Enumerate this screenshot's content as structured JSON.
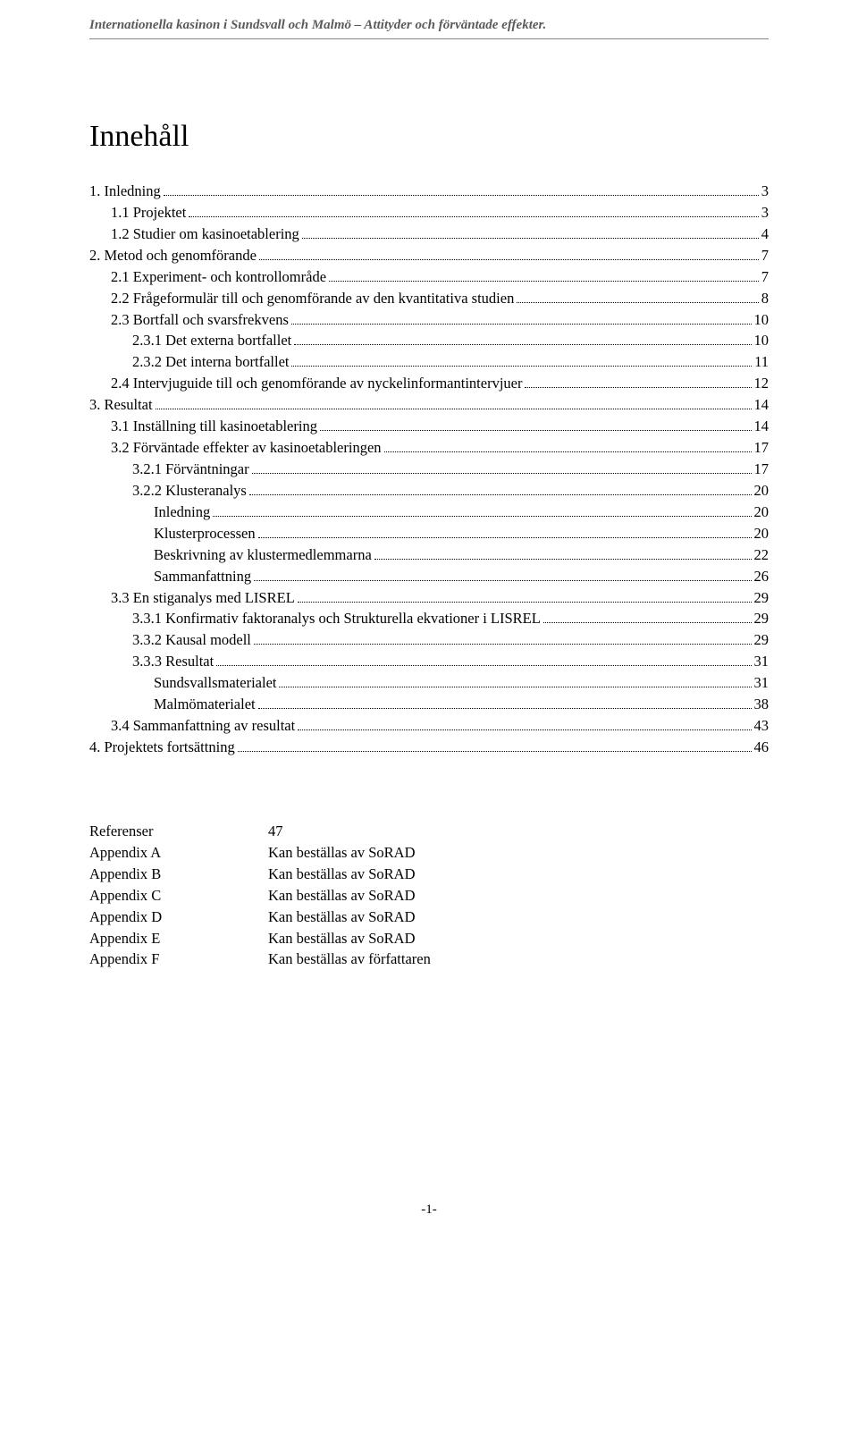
{
  "header": {
    "running_title": "Internationella kasinon i Sundsvall och Malmö – Attityder och förväntade effekter."
  },
  "title": "Innehåll",
  "toc": [
    {
      "label": "1. Inledning",
      "page": "3",
      "indent": 0
    },
    {
      "label": "1.1 Projektet",
      "page": "3",
      "indent": 1
    },
    {
      "label": "1.2 Studier om kasinoetablering",
      "page": "4",
      "indent": 1
    },
    {
      "label": "2. Metod och genomförande",
      "page": "7",
      "indent": 0
    },
    {
      "label": "2.1 Experiment- och kontrollområde",
      "page": "7",
      "indent": 1
    },
    {
      "label": "2.2 Frågeformulär till och genomförande av den kvantitativa studien",
      "page": "8",
      "indent": 1
    },
    {
      "label": "2.3 Bortfall och svarsfrekvens",
      "page": "10",
      "indent": 1
    },
    {
      "label": "2.3.1 Det externa bortfallet",
      "page": "10",
      "indent": 2
    },
    {
      "label": "2.3.2 Det interna bortfallet",
      "page": "11",
      "indent": 2
    },
    {
      "label": "2.4 Intervjuguide till och genomförande av nyckelinformantintervjuer",
      "page": "12",
      "indent": 1
    },
    {
      "label": "3. Resultat",
      "page": "14",
      "indent": 0
    },
    {
      "label": "3.1 Inställning till kasinoetablering",
      "page": "14",
      "indent": 1
    },
    {
      "label": "3.2 Förväntade effekter av kasinoetableringen",
      "page": "17",
      "indent": 1
    },
    {
      "label": "3.2.1 Förväntningar",
      "page": "17",
      "indent": 2
    },
    {
      "label": "3.2.2 Klusteranalys",
      "page": "20",
      "indent": 2
    },
    {
      "label": "Inledning",
      "page": "20",
      "indent": 3
    },
    {
      "label": "Klusterprocessen",
      "page": "20",
      "indent": 3
    },
    {
      "label": "Beskrivning av klustermedlemmarna",
      "page": "22",
      "indent": 3
    },
    {
      "label": "Sammanfattning",
      "page": "26",
      "indent": 3
    },
    {
      "label": "3.3 En stiganalys med LISREL",
      "page": "29",
      "indent": 1
    },
    {
      "label": "3.3.1 Konfirmativ faktoranalys och Strukturella ekvationer i LISREL",
      "page": "29",
      "indent": 2
    },
    {
      "label": "3.3.2 Kausal modell",
      "page": "29",
      "indent": 2
    },
    {
      "label": "3.3.3 Resultat",
      "page": "31",
      "indent": 2
    },
    {
      "label": "Sundsvallsmaterialet",
      "page": "31",
      "indent": 3
    },
    {
      "label": "Malmömaterialet",
      "page": "38",
      "indent": 3
    },
    {
      "label": "3.4 Sammanfattning av resultat",
      "page": "43",
      "indent": 1
    },
    {
      "label": "4. Projektets fortsättning",
      "page": "46",
      "indent": 0
    }
  ],
  "references": {
    "rows": [
      {
        "left": "Referenser",
        "right": "47"
      },
      {
        "left": "",
        "right": ""
      },
      {
        "left": "Appendix A",
        "right": "Kan beställas av SoRAD"
      },
      {
        "left": "Appendix B",
        "right": "Kan beställas av SoRAD"
      },
      {
        "left": "Appendix C",
        "right": "Kan beställas av SoRAD"
      },
      {
        "left": "Appendix D",
        "right": "Kan beställas av SoRAD"
      },
      {
        "left": "Appendix E",
        "right": "Kan beställas av SoRAD"
      },
      {
        "left": "Appendix F",
        "right": "Kan beställas av författaren"
      }
    ]
  },
  "footer": {
    "page_number": "-1-"
  }
}
